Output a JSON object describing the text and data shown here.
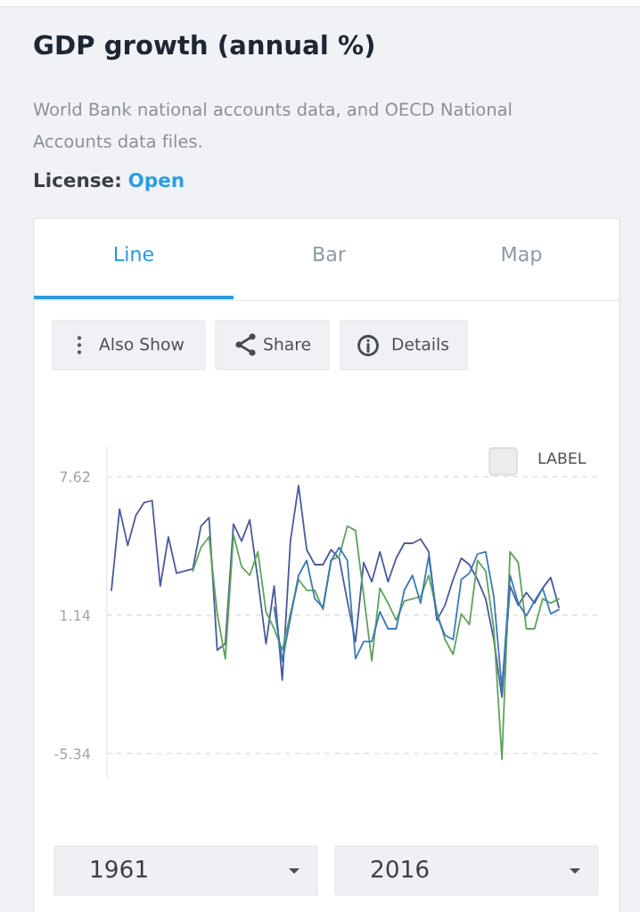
{
  "chart_data": {
    "type": "line",
    "title": "GDP growth (annual %)",
    "subtitle": "World Bank national accounts data, and OECD National Accounts data files.",
    "annotations": [
      "License:",
      "Open",
      "Line",
      "Bar",
      "Map",
      "Also Show",
      "Share",
      "Details",
      "LABEL",
      "1961",
      "2016"
    ],
    "categories": [
      null,
      null,
      null,
      null,
      null,
      null,
      null,
      null,
      null,
      null,
      null,
      null,
      null,
      null,
      null,
      null,
      null,
      null,
      null,
      null,
      null,
      null,
      null,
      null,
      null,
      null,
      null,
      null,
      null,
      null,
      null,
      null,
      null,
      null,
      null,
      null,
      null,
      null,
      null,
      null,
      null,
      null,
      null,
      null,
      null,
      null,
      null,
      null,
      null,
      null,
      null,
      null,
      null,
      null,
      null,
      null
    ],
    "series": [
      {
        "color": "#4b5a9a",
        "values": [
          2.3,
          6.1,
          4.4,
          5.8,
          6.4,
          6.5,
          2.5,
          4.8,
          3.1,
          3.2,
          3.3,
          5.3,
          5.7,
          -0.5,
          -0.2,
          5.4,
          4.6,
          5.6,
          2.8,
          -0.2,
          2.5,
          -1.9,
          4.6,
          7.2,
          4.2,
          3.5,
          3.5,
          4.2,
          3.8,
          1.8,
          -0.1,
          3.6,
          2.7,
          4.1,
          2.7,
          3.8,
          4.5,
          4.5,
          4.7,
          4.1,
          0.9,
          1.6,
          2.8,
          3.8,
          3.5,
          2.8,
          1.9,
          0.0,
          -2.7,
          2.5,
          1.6,
          2.2,
          1.7,
          2.4,
          2.9,
          1.5
        ]
      },
      {
        "color": "#5ea35b",
        "values": [
          null,
          null,
          null,
          null,
          null,
          null,
          null,
          null,
          null,
          null,
          3.2,
          4.3,
          4.8,
          1.2,
          -0.9,
          4.9,
          3.4,
          3.0,
          4.1,
          1.3,
          0.5,
          -0.5,
          1.2,
          2.8,
          2.3,
          2.3,
          1.4,
          3.7,
          3.9,
          5.3,
          5.1,
          2.1,
          -1.0,
          2.4,
          1.7,
          0.9,
          1.8,
          1.9,
          2.0,
          3.0,
          1.3,
          0.0,
          -0.7,
          1.2,
          0.7,
          3.7,
          3.2,
          0.5,
          -5.6,
          4.1,
          3.6,
          0.5,
          0.5,
          1.9,
          1.7,
          1.9
        ]
      },
      {
        "color": "#3a78b8",
        "values": [
          null,
          null,
          null,
          null,
          null,
          null,
          null,
          null,
          null,
          null,
          null,
          null,
          null,
          null,
          null,
          null,
          null,
          null,
          null,
          null,
          1.5,
          -1.0,
          1.0,
          3.0,
          3.7,
          1.9,
          1.5,
          3.7,
          4.3,
          3.7,
          -0.9,
          -0.1,
          -0.1,
          1.3,
          0.5,
          0.5,
          2.3,
          3.0,
          1.7,
          3.9,
          1.1,
          0.2,
          0.0,
          2.8,
          3.1,
          4.0,
          4.1,
          2.0,
          -2.3,
          3.0,
          1.7,
          1.1,
          1.8,
          2.4,
          1.2,
          1.4
        ]
      }
    ],
    "ylim": [
      -6.5,
      9.0
    ],
    "yticks": [
      7.62,
      1.14,
      -5.34
    ],
    "grid": "y"
  }
}
